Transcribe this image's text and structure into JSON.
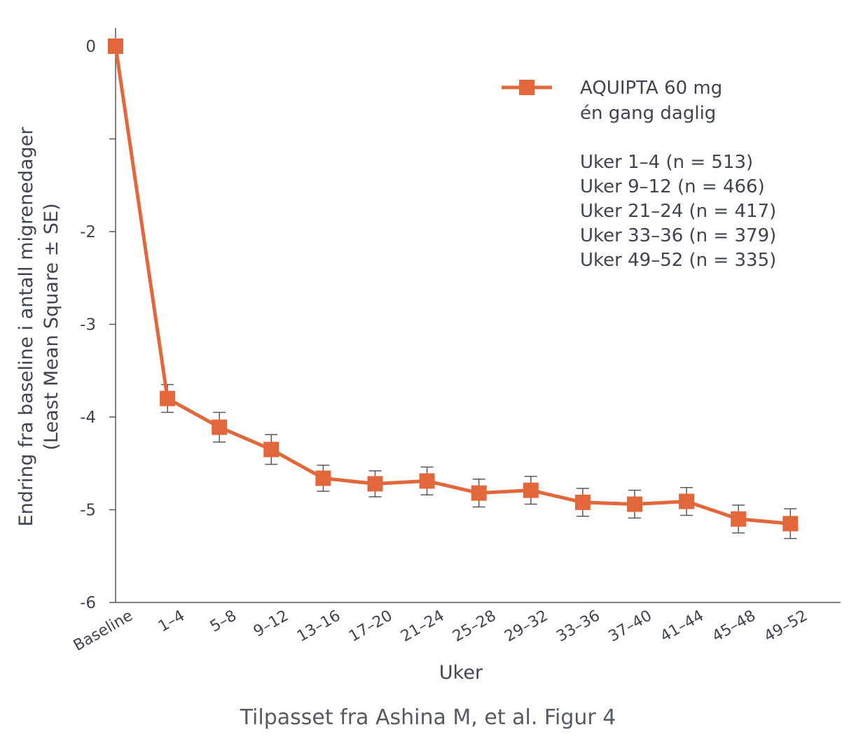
{
  "colors": {
    "series": "#E2673A",
    "axis": "#555a63",
    "text": "#3f4450",
    "errorbar": "#555a63"
  },
  "source_note": "Tilpasset fra Ashina M, et al. Figur 4",
  "legend": {
    "series_label_line1": "AQUIPTA 60 mg",
    "series_label_line2": "én gang daglig",
    "n_lines": [
      "Uker 1–4 (n = 513)",
      "Uker 9–12 (n = 466)",
      "Uker 21–24 (n = 417)",
      "Uker 33–36 (n = 379)",
      "Uker 49–52 (n = 335)"
    ]
  },
  "chart_data": {
    "type": "line",
    "title": "",
    "xlabel": "Uker",
    "ylabel_line1": "Endring fra baseline i antall migrenedager",
    "ylabel_line2": "(Least Mean Square ± SE)",
    "ylim": [
      -6,
      0
    ],
    "yticks": [
      0,
      -1,
      -2,
      -3,
      -4,
      -5,
      -6
    ],
    "ytick_labels": [
      "0",
      "",
      "-2",
      "-3",
      "-4",
      "-5",
      "-6"
    ],
    "categories": [
      "Baseline",
      "1–4",
      "5–8",
      "9–12",
      "13–16",
      "17–20",
      "21–24",
      "25–28",
      "29–32",
      "33–36",
      "37–40",
      "41–44",
      "45–48",
      "49–52"
    ],
    "series": [
      {
        "name": "AQUIPTA 60 mg én gang daglig",
        "values": [
          0,
          -3.8,
          -4.11,
          -4.35,
          -4.66,
          -4.72,
          -4.69,
          -4.82,
          -4.79,
          -4.92,
          -4.94,
          -4.91,
          -5.1,
          -5.15
        ],
        "se": [
          0,
          0.15,
          0.16,
          0.16,
          0.14,
          0.14,
          0.15,
          0.15,
          0.15,
          0.15,
          0.15,
          0.15,
          0.15,
          0.16
        ]
      }
    ]
  }
}
